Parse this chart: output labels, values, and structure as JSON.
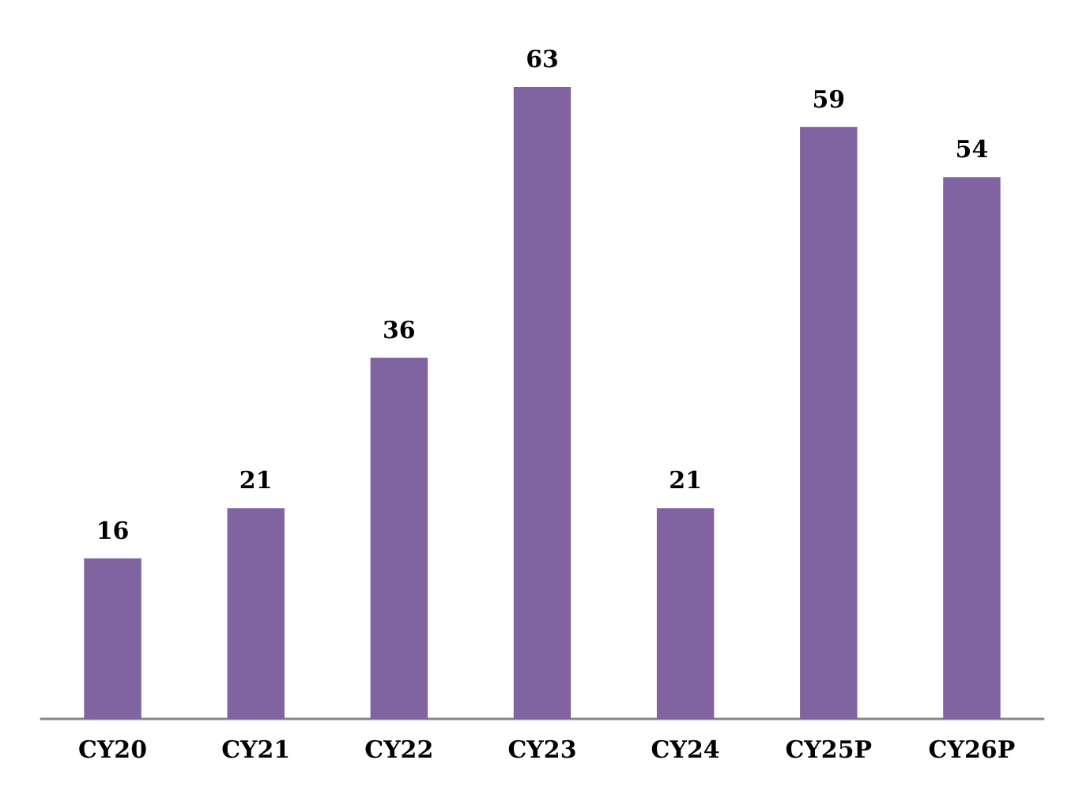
{
  "chart_data": {
    "type": "bar",
    "categories": [
      "CY20",
      "CY21",
      "CY22",
      "CY23",
      "CY24",
      "CY25P",
      "CY26P"
    ],
    "values": [
      16,
      21,
      36,
      63,
      21,
      59,
      54
    ],
    "color": "#8064a2",
    "data_labels": true
  }
}
